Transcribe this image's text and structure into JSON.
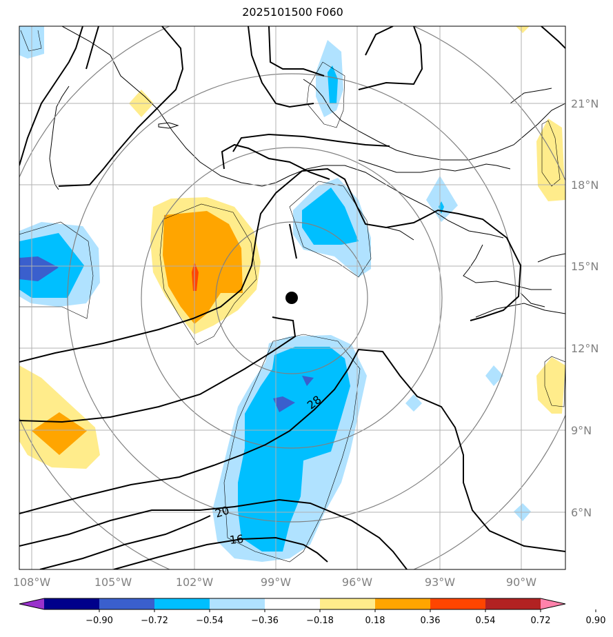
{
  "title": "2025101500 F060",
  "map": {
    "lon_labels": [
      "108°W",
      "105°W",
      "102°W",
      "99°W",
      "96°W",
      "93°W",
      "90°W"
    ],
    "lat_labels": [
      "21°N",
      "18°N",
      "15°N",
      "12°N",
      "9°N",
      "6°N"
    ],
    "contour_labels": [
      "28",
      "20",
      "16"
    ],
    "center_marker": "storm-center"
  },
  "colorbar": {
    "colors": [
      "#9932cc",
      "#00008b",
      "#3a5fcd",
      "#00bfff",
      "#b0e2ff",
      "#ffffff",
      "#ffec8b",
      "#ffa500",
      "#ff4500",
      "#b22222",
      "#ff82ab"
    ],
    "tick_labels": [
      "−0.90",
      "−0.72",
      "−0.54",
      "−0.36",
      "−0.18",
      "0.18",
      "0.36",
      "0.54",
      "0.72",
      "0.90"
    ]
  }
}
